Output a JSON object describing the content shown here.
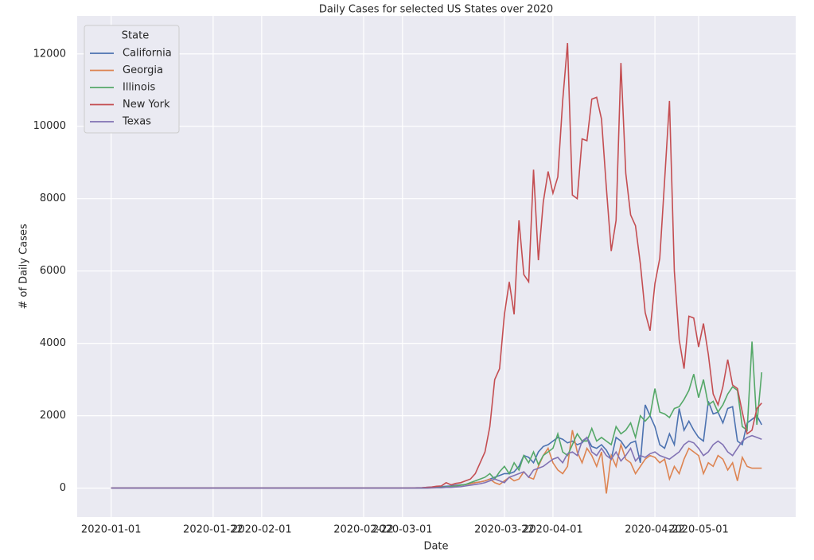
{
  "chart_data": {
    "type": "line",
    "title": "Daily Cases for selected US States over 2020",
    "x_label": "Date",
    "y_label": "# of Daily Cases",
    "legend_title": "State",
    "legend_position": "upper left",
    "grid": true,
    "x": [
      "2020-01-01",
      "2020-01-02",
      "2020-01-03",
      "2020-01-04",
      "2020-01-05",
      "2020-01-06",
      "2020-01-07",
      "2020-01-08",
      "2020-01-09",
      "2020-01-10",
      "2020-01-11",
      "2020-01-12",
      "2020-01-13",
      "2020-01-14",
      "2020-01-15",
      "2020-01-16",
      "2020-01-17",
      "2020-01-18",
      "2020-01-19",
      "2020-01-20",
      "2020-01-21",
      "2020-01-22",
      "2020-01-23",
      "2020-01-24",
      "2020-01-25",
      "2020-01-26",
      "2020-01-27",
      "2020-01-28",
      "2020-01-29",
      "2020-01-30",
      "2020-01-31",
      "2020-02-01",
      "2020-02-02",
      "2020-02-03",
      "2020-02-04",
      "2020-02-05",
      "2020-02-06",
      "2020-02-07",
      "2020-02-08",
      "2020-02-09",
      "2020-02-10",
      "2020-02-11",
      "2020-02-12",
      "2020-02-13",
      "2020-02-14",
      "2020-02-15",
      "2020-02-16",
      "2020-02-17",
      "2020-02-18",
      "2020-02-19",
      "2020-02-20",
      "2020-02-21",
      "2020-02-22",
      "2020-02-23",
      "2020-02-24",
      "2020-02-25",
      "2020-02-26",
      "2020-02-27",
      "2020-02-28",
      "2020-02-29",
      "2020-03-01",
      "2020-03-02",
      "2020-03-03",
      "2020-03-04",
      "2020-03-05",
      "2020-03-06",
      "2020-03-07",
      "2020-03-08",
      "2020-03-09",
      "2020-03-10",
      "2020-03-11",
      "2020-03-12",
      "2020-03-13",
      "2020-03-14",
      "2020-03-15",
      "2020-03-16",
      "2020-03-17",
      "2020-03-18",
      "2020-03-19",
      "2020-03-20",
      "2020-03-21",
      "2020-03-22",
      "2020-03-23",
      "2020-03-24",
      "2020-03-25",
      "2020-03-26",
      "2020-03-27",
      "2020-03-28",
      "2020-03-29",
      "2020-03-30",
      "2020-03-31",
      "2020-04-01",
      "2020-04-02",
      "2020-04-03",
      "2020-04-04",
      "2020-04-05",
      "2020-04-06",
      "2020-04-07",
      "2020-04-08",
      "2020-04-09",
      "2020-04-10",
      "2020-04-11",
      "2020-04-12",
      "2020-04-13",
      "2020-04-14",
      "2020-04-15",
      "2020-04-16",
      "2020-04-17",
      "2020-04-18",
      "2020-04-19",
      "2020-04-20",
      "2020-04-21",
      "2020-04-22",
      "2020-04-23",
      "2020-04-24",
      "2020-04-25",
      "2020-04-26",
      "2020-04-27",
      "2020-04-28",
      "2020-04-29",
      "2020-04-30",
      "2020-05-01",
      "2020-05-02",
      "2020-05-03",
      "2020-05-04",
      "2020-05-05",
      "2020-05-06",
      "2020-05-07",
      "2020-05-08",
      "2020-05-09",
      "2020-05-10",
      "2020-05-11",
      "2020-05-12",
      "2020-05-13",
      "2020-05-14"
    ],
    "xlim": [
      "2019-12-25",
      "2020-05-21"
    ],
    "xticks": [
      "2020-01-01",
      "2020-01-22",
      "2020-02-01",
      "2020-02-22",
      "2020-03-01",
      "2020-03-22",
      "2020-04-01",
      "2020-04-22",
      "2020-05-01"
    ],
    "ylim": [
      -800,
      13050
    ],
    "yticks": [
      0,
      2000,
      4000,
      6000,
      8000,
      10000,
      12000
    ],
    "series": [
      {
        "name": "California",
        "color": "#4c72b0",
        "values": [
          0,
          0,
          0,
          0,
          0,
          0,
          0,
          0,
          0,
          0,
          0,
          0,
          0,
          0,
          0,
          0,
          0,
          0,
          0,
          0,
          0,
          0,
          0,
          0,
          0,
          0,
          0,
          0,
          0,
          0,
          0,
          0,
          0,
          0,
          0,
          0,
          0,
          0,
          0,
          0,
          0,
          0,
          0,
          0,
          0,
          0,
          0,
          0,
          0,
          0,
          0,
          0,
          0,
          0,
          0,
          0,
          0,
          0,
          0,
          0,
          0,
          5,
          5,
          10,
          10,
          20,
          30,
          40,
          40,
          50,
          60,
          80,
          90,
          100,
          130,
          150,
          170,
          200,
          250,
          300,
          350,
          400,
          400,
          450,
          600,
          900,
          850,
          700,
          1000,
          1150,
          1200,
          1300,
          1400,
          1350,
          1250,
          1300,
          1200,
          1250,
          1400,
          1150,
          1100,
          1200,
          1050,
          800,
          1400,
          1300,
          1100,
          1250,
          1300,
          700,
          2300,
          2000,
          1700,
          1200,
          1100,
          1500,
          1200,
          2200,
          1600,
          1850,
          1600,
          1400,
          1300,
          2400,
          2050,
          2100,
          1800,
          2200,
          2250,
          1300,
          1200,
          1800,
          1900,
          2000,
          1750
        ]
      },
      {
        "name": "Georgia",
        "color": "#dd8452",
        "values": [
          0,
          0,
          0,
          0,
          0,
          0,
          0,
          0,
          0,
          0,
          0,
          0,
          0,
          0,
          0,
          0,
          0,
          0,
          0,
          0,
          0,
          0,
          0,
          0,
          0,
          0,
          0,
          0,
          0,
          0,
          0,
          0,
          0,
          0,
          0,
          0,
          0,
          0,
          0,
          0,
          0,
          0,
          0,
          0,
          0,
          0,
          0,
          0,
          0,
          0,
          0,
          0,
          0,
          0,
          0,
          0,
          0,
          0,
          0,
          0,
          0,
          0,
          0,
          0,
          0,
          1,
          5,
          10,
          20,
          30,
          40,
          60,
          80,
          100,
          120,
          150,
          170,
          200,
          250,
          150,
          100,
          200,
          300,
          200,
          250,
          450,
          300,
          250,
          600,
          900,
          1100,
          700,
          500,
          400,
          600,
          1600,
          1000,
          700,
          1100,
          900,
          600,
          1000,
          -150,
          900,
          600,
          1200,
          800,
          700,
          400,
          600,
          800,
          900,
          850,
          700,
          800,
          250,
          600,
          400,
          800,
          1100,
          1000,
          900,
          400,
          700,
          600,
          900,
          800,
          500,
          700,
          200,
          850,
          600,
          550,
          550,
          550
        ]
      },
      {
        "name": "Illinois",
        "color": "#55a868",
        "values": [
          0,
          0,
          0,
          0,
          0,
          0,
          0,
          0,
          0,
          0,
          0,
          0,
          0,
          0,
          0,
          0,
          0,
          0,
          0,
          0,
          0,
          0,
          0,
          0,
          0,
          0,
          0,
          0,
          0,
          0,
          0,
          0,
          0,
          0,
          0,
          0,
          0,
          0,
          0,
          0,
          0,
          0,
          0,
          0,
          0,
          0,
          0,
          0,
          0,
          0,
          0,
          0,
          0,
          0,
          0,
          0,
          0,
          0,
          0,
          0,
          0,
          0,
          0,
          0,
          2,
          5,
          10,
          15,
          20,
          30,
          40,
          50,
          80,
          100,
          150,
          200,
          250,
          300,
          400,
          250,
          450,
          600,
          400,
          700,
          500,
          900,
          700,
          1000,
          650,
          900,
          1000,
          1100,
          1500,
          1000,
          900,
          1200,
          1500,
          1300,
          1300,
          1650,
          1300,
          1400,
          1300,
          1200,
          1700,
          1500,
          1600,
          1800,
          1400,
          2000,
          1850,
          2000,
          2750,
          2100,
          2050,
          1950,
          2200,
          2250,
          2450,
          2700,
          3150,
          2500,
          3000,
          2300,
          2400,
          2100,
          2300,
          2600,
          2800,
          2700,
          1700,
          1600,
          4050,
          1750,
          3200
        ]
      },
      {
        "name": "New York",
        "color": "#c44e52",
        "values": [
          0,
          0,
          0,
          0,
          0,
          0,
          0,
          0,
          0,
          0,
          0,
          0,
          0,
          0,
          0,
          0,
          0,
          0,
          0,
          0,
          0,
          0,
          0,
          0,
          0,
          0,
          0,
          0,
          0,
          0,
          0,
          0,
          0,
          0,
          0,
          0,
          0,
          0,
          0,
          0,
          0,
          0,
          0,
          0,
          0,
          0,
          0,
          0,
          0,
          0,
          0,
          0,
          0,
          0,
          0,
          0,
          0,
          0,
          0,
          0,
          0,
          0,
          3,
          4,
          10,
          20,
          30,
          50,
          60,
          150,
          90,
          130,
          150,
          200,
          250,
          400,
          700,
          1000,
          1700,
          3000,
          3300,
          4800,
          5700,
          4800,
          7400,
          5900,
          5700,
          8800,
          6300,
          7900,
          8750,
          8150,
          8600,
          10700,
          12300,
          8100,
          8000,
          9650,
          9600,
          10750,
          10800,
          10200,
          8300,
          6550,
          7400,
          11750,
          8700,
          7550,
          7250,
          6200,
          4850,
          4350,
          5650,
          6350,
          8500,
          10700,
          6000,
          4100,
          3300,
          4750,
          4700,
          3900,
          4550,
          3700,
          2600,
          2300,
          2800,
          3550,
          2850,
          2750,
          2100,
          1500,
          1600,
          2200,
          2350
        ]
      },
      {
        "name": "Texas",
        "color": "#8172b3",
        "values": [
          0,
          0,
          0,
          0,
          0,
          0,
          0,
          0,
          0,
          0,
          0,
          0,
          0,
          0,
          0,
          0,
          0,
          0,
          0,
          0,
          0,
          0,
          0,
          0,
          0,
          0,
          0,
          0,
          0,
          0,
          0,
          0,
          0,
          0,
          0,
          0,
          0,
          0,
          0,
          0,
          0,
          0,
          0,
          0,
          0,
          0,
          0,
          0,
          0,
          0,
          0,
          0,
          0,
          0,
          0,
          0,
          0,
          0,
          0,
          0,
          0,
          0,
          0,
          0,
          0,
          2,
          5,
          10,
          10,
          20,
          20,
          30,
          40,
          60,
          80,
          100,
          120,
          150,
          200,
          250,
          200,
          150,
          300,
          350,
          400,
          450,
          300,
          500,
          550,
          600,
          700,
          800,
          850,
          700,
          950,
          1000,
          900,
          1300,
          1400,
          1000,
          900,
          1100,
          900,
          800,
          1000,
          750,
          900,
          1100,
          750,
          900,
          850,
          950,
          1000,
          900,
          850,
          800,
          900,
          1000,
          1200,
          1300,
          1250,
          1100,
          900,
          1000,
          1200,
          1300,
          1200,
          1000,
          900,
          1100,
          1300,
          1400,
          1450,
          1400,
          1350
        ]
      }
    ]
  }
}
